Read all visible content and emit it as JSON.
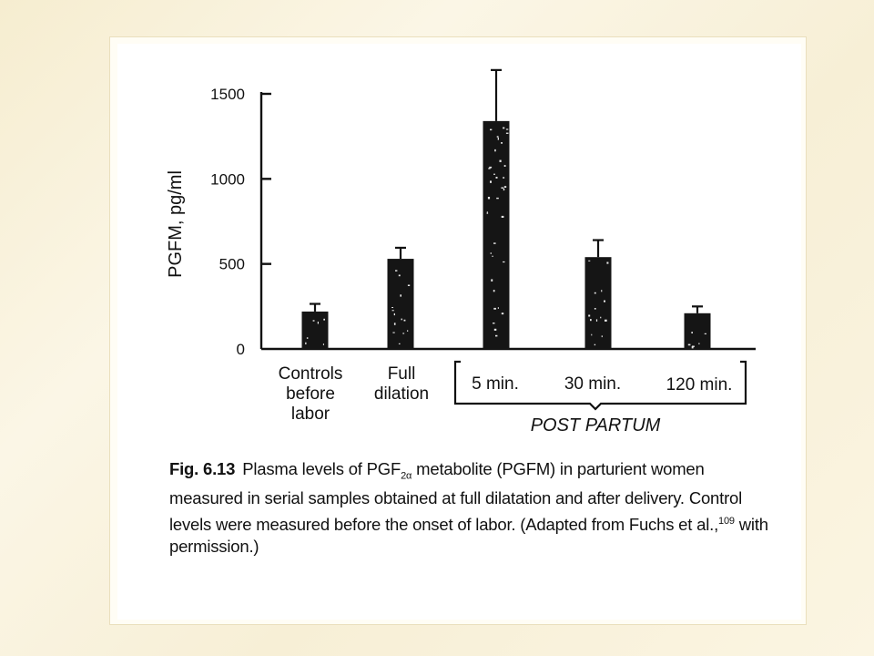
{
  "chart_data": {
    "type": "bar",
    "ylabel": "PGFM, pg/ml",
    "ylim": [
      0,
      1500
    ],
    "yticks": [
      "0",
      "500",
      "1000",
      "1500"
    ],
    "grid": false,
    "categories": [
      {
        "label_lines": [
          "Controls",
          "before",
          "labor"
        ],
        "value": 220,
        "error": 45
      },
      {
        "label_lines": [
          "Full",
          "dilation"
        ],
        "value": 530,
        "error": 65
      },
      {
        "label_lines": [
          "5 min."
        ],
        "value": 1340,
        "error": 300
      },
      {
        "label_lines": [
          "30 min."
        ],
        "value": 540,
        "error": 100
      },
      {
        "label_lines": [
          "120 min."
        ],
        "value": 210,
        "error": 40
      }
    ],
    "group_bracket": {
      "label": "POST PARTUM",
      "from_index": 2,
      "to_index": 4
    },
    "bar_color": "#151515"
  },
  "caption": {
    "fig_number": "Fig. 6.13",
    "text_1": "Plasma levels of PGF",
    "sub": "2α",
    "text_2": "metabolite (PGFM) in parturient women measured in serial samples obtained at full dilatation and after delivery. Control levels were measured before the onset of labor. (Adapted from Fuchs et al.,",
    "sup": "109",
    "text_3": "with permission.)"
  }
}
